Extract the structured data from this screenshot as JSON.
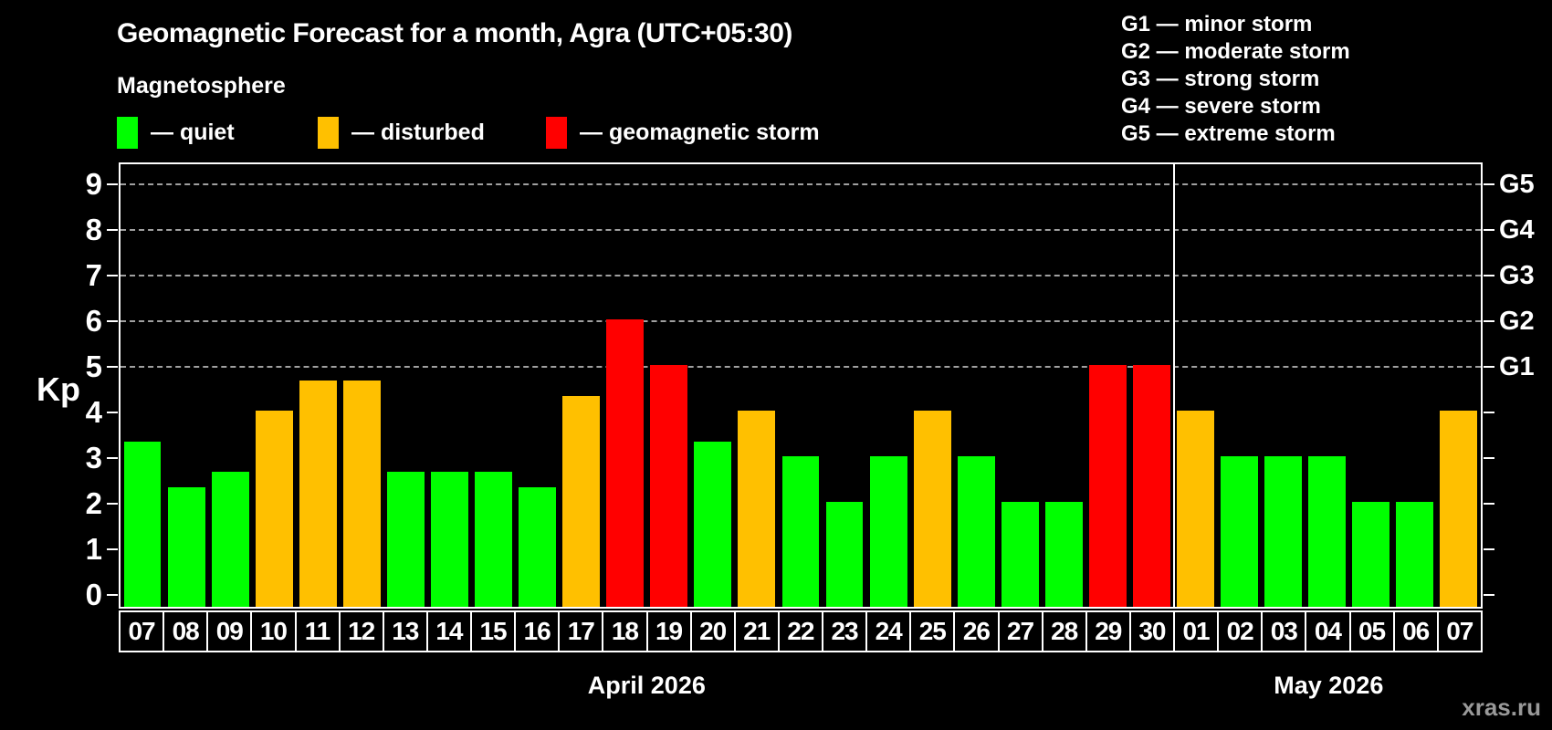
{
  "header": {
    "title": "Geomagnetic Forecast for a month, Agra (UTC+05:30)",
    "subtitle": "Magnetosphere"
  },
  "legend": {
    "items": [
      {
        "key": "quiet",
        "label": "— quiet",
        "color": "#00ff00"
      },
      {
        "key": "disturbed",
        "label": "— disturbed",
        "color": "#ffc000"
      },
      {
        "key": "storm",
        "label": "— geomagnetic storm",
        "color": "#ff0000"
      }
    ]
  },
  "storm_scale": [
    "G1 — minor storm",
    "G2 — moderate storm",
    "G3 — strong storm",
    "G4 — severe storm",
    "G5 — extreme storm"
  ],
  "watermark": "xras.ru",
  "chart_data": {
    "type": "bar",
    "title": "Geomagnetic Forecast for a month, Agra (UTC+05:30)",
    "ylabel": "Kp",
    "ylim": [
      0,
      9.5
    ],
    "y_ticks": [
      0,
      1,
      2,
      3,
      4,
      5,
      6,
      7,
      8,
      9
    ],
    "gridlines_at": [
      5,
      6,
      7,
      8,
      9
    ],
    "grid": "dashed",
    "right_axis_labels": [
      {
        "label": "G1",
        "kp": 5
      },
      {
        "label": "G2",
        "kp": 6
      },
      {
        "label": "G3",
        "kp": 7
      },
      {
        "label": "G4",
        "kp": 8
      },
      {
        "label": "G5",
        "kp": 9
      }
    ],
    "colors": {
      "quiet": "#00ff00",
      "disturbed": "#ffc000",
      "storm": "#ff0000"
    },
    "months": [
      {
        "label": "April 2026",
        "days": 24
      },
      {
        "label": "May 2026",
        "days": 7
      }
    ],
    "categories": [
      "07",
      "08",
      "09",
      "10",
      "11",
      "12",
      "13",
      "14",
      "15",
      "16",
      "17",
      "18",
      "19",
      "20",
      "21",
      "22",
      "23",
      "24",
      "25",
      "26",
      "27",
      "28",
      "29",
      "30",
      "01",
      "02",
      "03",
      "04",
      "05",
      "06",
      "07"
    ],
    "values": [
      3.33,
      2.33,
      2.67,
      4.0,
      4.67,
      4.67,
      2.67,
      2.67,
      2.67,
      2.33,
      4.33,
      6.0,
      5.0,
      3.33,
      4.0,
      3.0,
      2.0,
      3.0,
      4.0,
      3.0,
      2.0,
      2.0,
      5.0,
      5.0,
      4.0,
      3.0,
      3.0,
      3.0,
      2.0,
      2.0,
      4.0
    ],
    "states": [
      "quiet",
      "quiet",
      "quiet",
      "disturbed",
      "disturbed",
      "disturbed",
      "quiet",
      "quiet",
      "quiet",
      "quiet",
      "disturbed",
      "storm",
      "storm",
      "quiet",
      "disturbed",
      "quiet",
      "quiet",
      "quiet",
      "disturbed",
      "quiet",
      "quiet",
      "quiet",
      "storm",
      "storm",
      "disturbed",
      "quiet",
      "quiet",
      "quiet",
      "quiet",
      "quiet",
      "disturbed"
    ]
  }
}
